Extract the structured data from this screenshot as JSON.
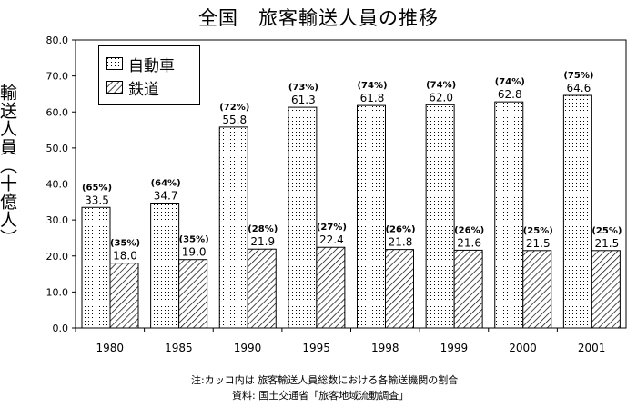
{
  "chart_data": {
    "type": "bar",
    "title": "全国　旅客輸送人員の推移",
    "ylabel": "輸送人員（十億人）",
    "xlabel": "",
    "ylim": [
      0,
      80
    ],
    "yticks": [
      "0.0",
      "10.0",
      "20.0",
      "30.0",
      "40.0",
      "50.0",
      "60.0",
      "70.0",
      "80.0"
    ],
    "categories": [
      "1980",
      "1985",
      "1990",
      "1995",
      "1998",
      "1999",
      "2000",
      "2001"
    ],
    "series": [
      {
        "name": "自動車",
        "pattern": "dots",
        "values": [
          33.5,
          34.7,
          55.8,
          61.3,
          61.8,
          62.0,
          62.8,
          64.6
        ],
        "value_labels": [
          "33.5",
          "34.7",
          "55.8",
          "61.3",
          "61.8",
          "62.0",
          "62.8",
          "64.6"
        ],
        "share_labels": [
          "(65%)",
          "(64%)",
          "(72%)",
          "(73%)",
          "(74%)",
          "(74%)",
          "(74%)",
          "(75%)"
        ]
      },
      {
        "name": "鉄道",
        "pattern": "hatch",
        "values": [
          18.0,
          19.0,
          21.9,
          22.4,
          21.8,
          21.6,
          21.5,
          21.5
        ],
        "value_labels": [
          "18.0",
          "19.0",
          "21.9",
          "22.4",
          "21.8",
          "21.6",
          "21.5",
          "21.5"
        ],
        "share_labels": [
          "(35%)",
          "(35%)",
          "(28%)",
          "(27%)",
          "(26%)",
          "(26%)",
          "(25%)",
          "(25%)"
        ]
      }
    ],
    "grid": false,
    "legend_position": "top-left",
    "colors": {
      "bar_fill": "#ffffff",
      "pattern": "#000000",
      "axis": "#000000"
    }
  },
  "notes": {
    "line1": "注:カッコ内は 旅客輸送人員総数における各輸送機関の割合",
    "line2": "資料: 国土交通省「旅客地域流動調査」"
  }
}
